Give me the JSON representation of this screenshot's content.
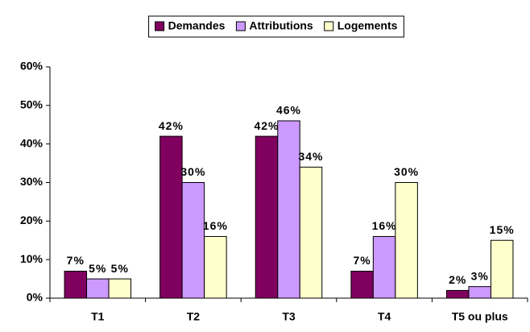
{
  "chart_data": {
    "type": "bar",
    "categories": [
      "T1",
      "T2",
      "T3",
      "T4",
      "T5 ou plus"
    ],
    "series": [
      {
        "name": "Demandes",
        "color": "#800060",
        "values": [
          7,
          42,
          42,
          7,
          2
        ],
        "value_labels": [
          "7%",
          "42%",
          "42%",
          "7%",
          "2%"
        ]
      },
      {
        "name": "Attributions",
        "color": "#cc99ff",
        "values": [
          5,
          30,
          46,
          16,
          3
        ],
        "value_labels": [
          "5%",
          "30%",
          "46%",
          "16%",
          "3%"
        ]
      },
      {
        "name": "Logements",
        "color": "#ffffcc",
        "values": [
          5,
          16,
          34,
          30,
          15
        ],
        "value_labels": [
          "5%",
          "16%",
          "34%",
          "30%",
          "15%"
        ]
      }
    ],
    "ylim": [
      0,
      60
    ],
    "yticks": [
      {
        "value": 0,
        "label": "0%"
      },
      {
        "value": 10,
        "label": "10%"
      },
      {
        "value": 20,
        "label": "20%"
      },
      {
        "value": 30,
        "label": "30%"
      },
      {
        "value": 40,
        "label": "40%"
      },
      {
        "value": 50,
        "label": "50%"
      },
      {
        "value": 60,
        "label": "60%"
      }
    ],
    "legend": "top"
  }
}
